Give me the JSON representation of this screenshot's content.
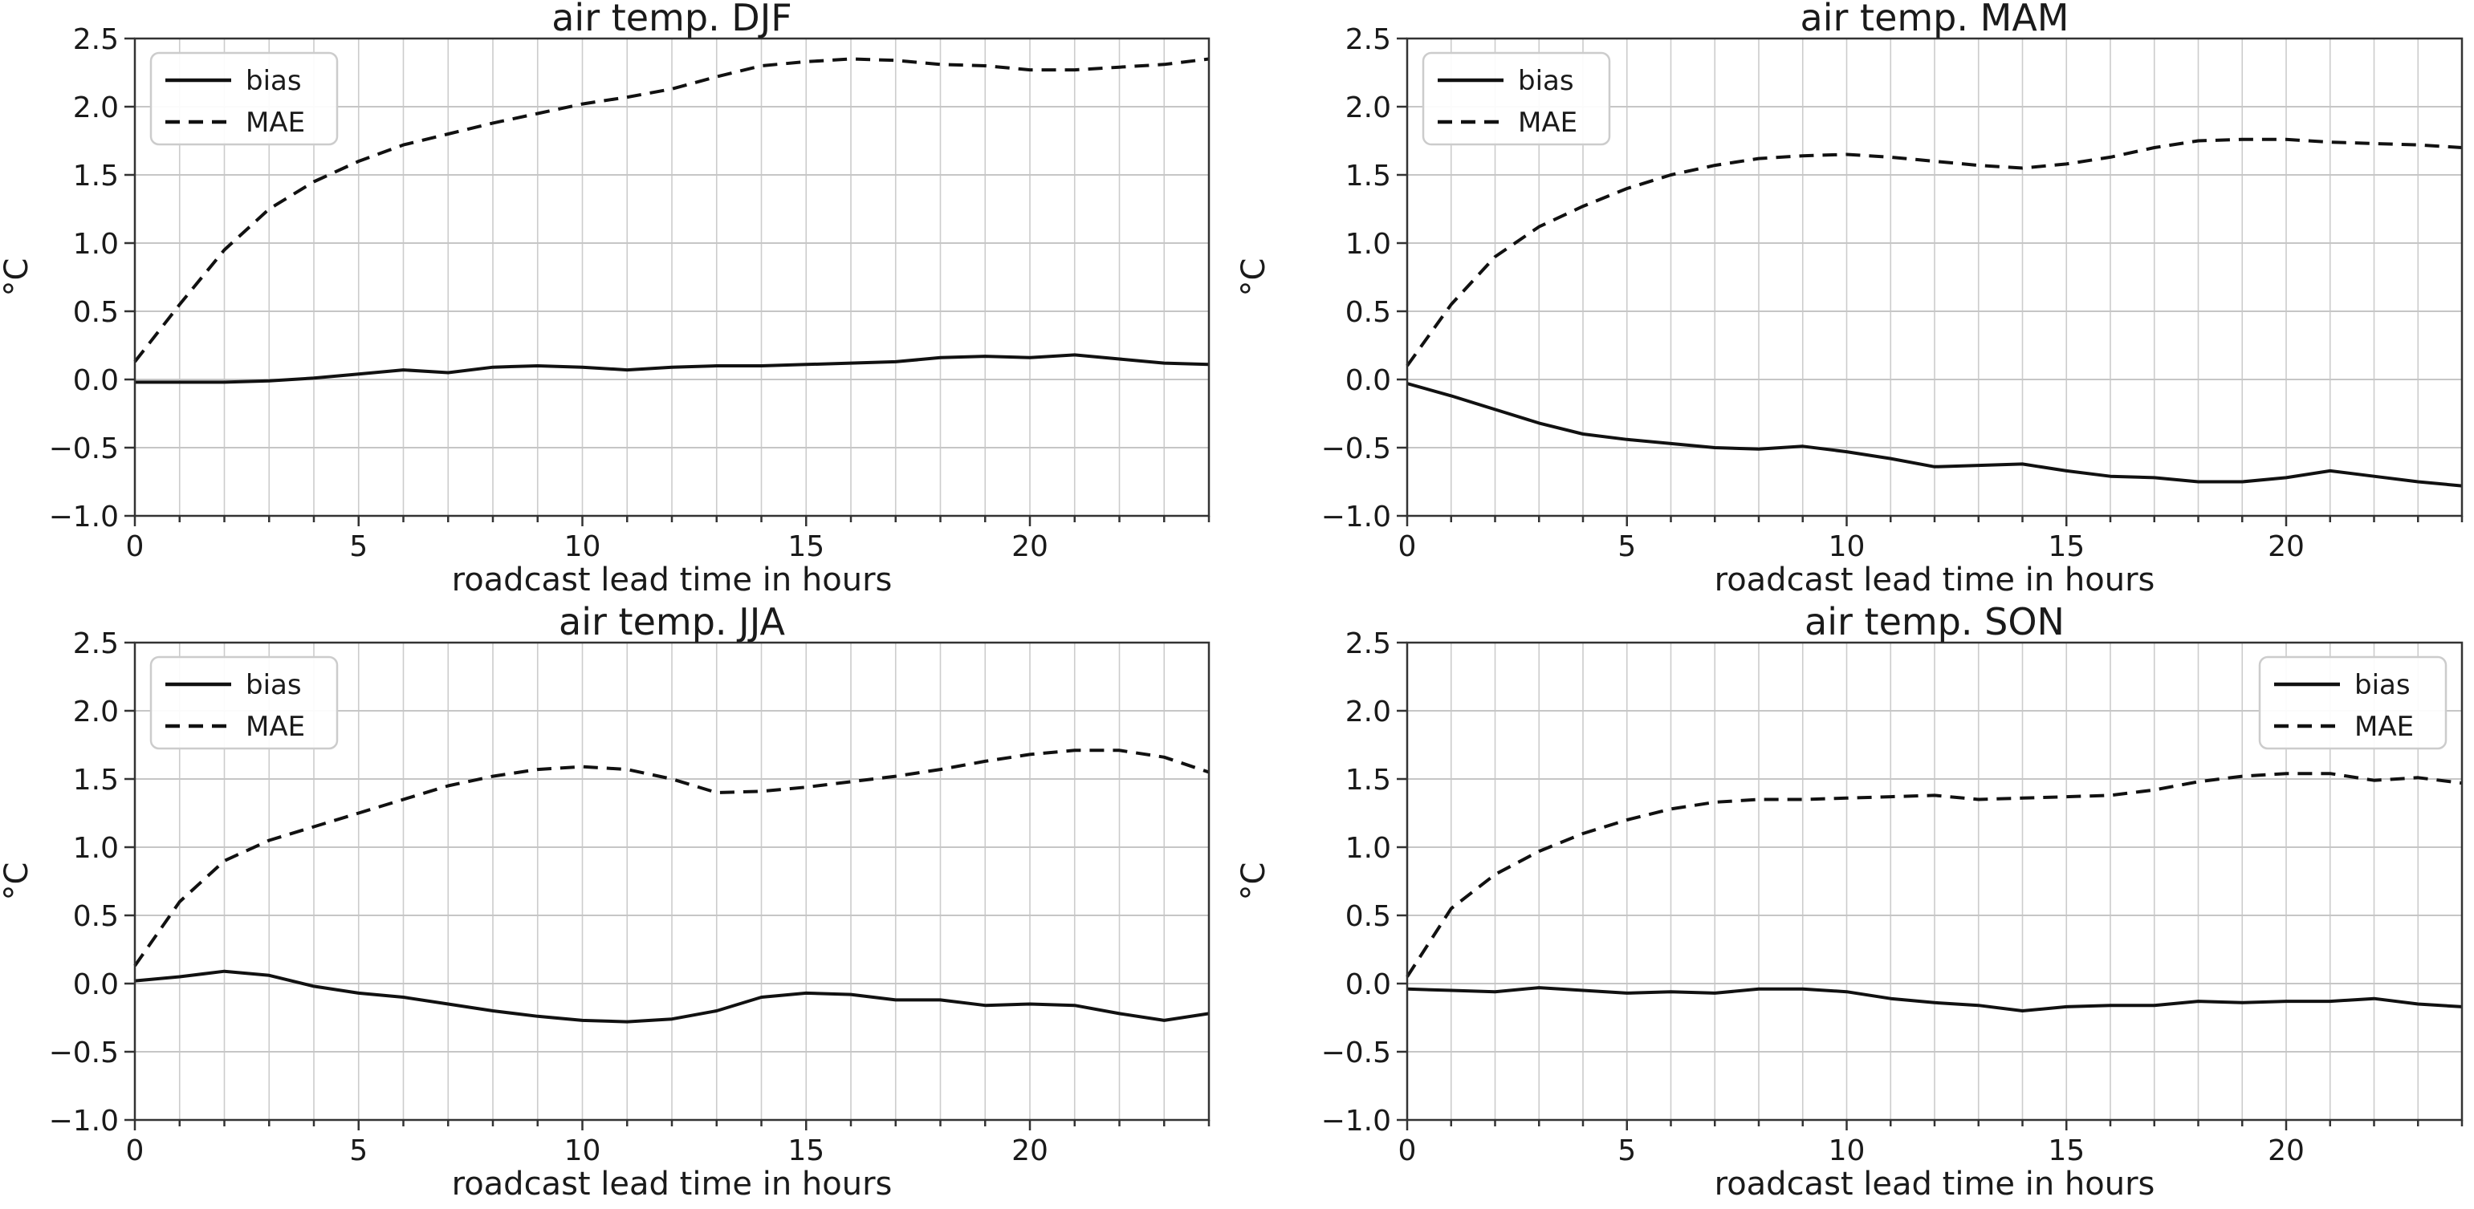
{
  "figure": {
    "background": "#ffffff",
    "line_color": "#111111",
    "grid_color_vertical": "#cccccc",
    "grid_color_horizontal": "#c6c6c6",
    "spine_color": "#333333",
    "text_color": "#1a1a1a",
    "legend_border_color": "#cccccc",
    "legend_labels": [
      "bias",
      "MAE"
    ]
  },
  "chart_data": [
    {
      "type": "line",
      "title": "air temp. DJF",
      "xlabel": "roadcast lead time in hours",
      "ylabel": "°C",
      "xlim": [
        0,
        24
      ],
      "ylim": [
        -1.0,
        2.5
      ],
      "grid": true,
      "legend_position": "top-left",
      "x_tick_values": [
        0,
        5,
        10,
        15,
        20
      ],
      "x_tick_labels": [
        "0",
        "5",
        "10",
        "15",
        "20"
      ],
      "x_minor_tick_every": 1,
      "y_tick_values": [
        2.5,
        2.0,
        1.5,
        1.0,
        0.5,
        0.0,
        -0.5,
        -1.0
      ],
      "y_tick_labels": [
        "2.5",
        "2.0",
        "1.5",
        "1.0",
        "0.5",
        "0.0",
        "−0.5",
        "−1.0"
      ],
      "x": [
        0,
        1,
        2,
        3,
        4,
        5,
        6,
        7,
        8,
        9,
        10,
        11,
        12,
        13,
        14,
        15,
        16,
        17,
        18,
        19,
        20,
        21,
        22,
        23,
        24
      ],
      "series": [
        {
          "name": "bias",
          "line_style": "solid",
          "values": [
            -0.02,
            -0.02,
            -0.02,
            -0.01,
            0.01,
            0.04,
            0.07,
            0.05,
            0.09,
            0.1,
            0.09,
            0.07,
            0.09,
            0.1,
            0.1,
            0.11,
            0.12,
            0.13,
            0.16,
            0.17,
            0.16,
            0.18,
            0.15,
            0.12,
            0.11
          ]
        },
        {
          "name": "MAE",
          "line_style": "dashed",
          "values": [
            0.13,
            0.55,
            0.95,
            1.25,
            1.45,
            1.6,
            1.72,
            1.8,
            1.88,
            1.95,
            2.02,
            2.07,
            2.13,
            2.22,
            2.3,
            2.33,
            2.35,
            2.34,
            2.31,
            2.3,
            2.27,
            2.27,
            2.29,
            2.31,
            2.35
          ]
        }
      ]
    },
    {
      "type": "line",
      "title": "air temp. MAM",
      "xlabel": "roadcast lead time in hours",
      "ylabel": "°C",
      "xlim": [
        0,
        24
      ],
      "ylim": [
        -1.0,
        2.5
      ],
      "grid": true,
      "legend_position": "top-left",
      "x_tick_values": [
        0,
        5,
        10,
        15,
        20
      ],
      "x_tick_labels": [
        "0",
        "5",
        "10",
        "15",
        "20"
      ],
      "x_minor_tick_every": 1,
      "y_tick_values": [
        2.5,
        2.0,
        1.5,
        1.0,
        0.5,
        0.0,
        -0.5,
        -1.0
      ],
      "y_tick_labels": [
        "2.5",
        "2.0",
        "1.5",
        "1.0",
        "0.5",
        "0.0",
        "−0.5",
        "−1.0"
      ],
      "x": [
        0,
        1,
        2,
        3,
        4,
        5,
        6,
        7,
        8,
        9,
        10,
        11,
        12,
        13,
        14,
        15,
        16,
        17,
        18,
        19,
        20,
        21,
        22,
        23,
        24
      ],
      "series": [
        {
          "name": "bias",
          "line_style": "solid",
          "values": [
            -0.03,
            -0.12,
            -0.22,
            -0.32,
            -0.4,
            -0.44,
            -0.47,
            -0.5,
            -0.51,
            -0.49,
            -0.53,
            -0.58,
            -0.64,
            -0.63,
            -0.62,
            -0.67,
            -0.71,
            -0.72,
            -0.75,
            -0.75,
            -0.72,
            -0.67,
            -0.71,
            -0.75,
            -0.78
          ]
        },
        {
          "name": "MAE",
          "line_style": "dashed",
          "values": [
            0.1,
            0.55,
            0.9,
            1.12,
            1.27,
            1.4,
            1.5,
            1.57,
            1.62,
            1.64,
            1.65,
            1.63,
            1.6,
            1.57,
            1.55,
            1.58,
            1.63,
            1.7,
            1.75,
            1.76,
            1.76,
            1.74,
            1.73,
            1.72,
            1.7
          ]
        }
      ]
    },
    {
      "type": "line",
      "title": "air temp. JJA",
      "xlabel": "roadcast lead time in hours",
      "ylabel": "°C",
      "xlim": [
        0,
        24
      ],
      "ylim": [
        -1.0,
        2.5
      ],
      "grid": true,
      "legend_position": "top-left",
      "x_tick_values": [
        0,
        5,
        10,
        15,
        20
      ],
      "x_tick_labels": [
        "0",
        "5",
        "10",
        "15",
        "20"
      ],
      "x_minor_tick_every": 1,
      "y_tick_values": [
        2.5,
        2.0,
        1.5,
        1.0,
        0.5,
        0.0,
        -0.5,
        -1.0
      ],
      "y_tick_labels": [
        "2.5",
        "2.0",
        "1.5",
        "1.0",
        "0.5",
        "0.0",
        "−0.5",
        "−1.0"
      ],
      "x": [
        0,
        1,
        2,
        3,
        4,
        5,
        6,
        7,
        8,
        9,
        10,
        11,
        12,
        13,
        14,
        15,
        16,
        17,
        18,
        19,
        20,
        21,
        22,
        23,
        24
      ],
      "series": [
        {
          "name": "bias",
          "line_style": "solid",
          "values": [
            0.02,
            0.05,
            0.09,
            0.06,
            -0.02,
            -0.07,
            -0.1,
            -0.15,
            -0.2,
            -0.24,
            -0.27,
            -0.28,
            -0.26,
            -0.2,
            -0.1,
            -0.07,
            -0.08,
            -0.12,
            -0.12,
            -0.16,
            -0.15,
            -0.16,
            -0.22,
            -0.27,
            -0.22
          ]
        },
        {
          "name": "MAE",
          "line_style": "dashed",
          "values": [
            0.13,
            0.6,
            0.9,
            1.05,
            1.15,
            1.25,
            1.35,
            1.45,
            1.52,
            1.57,
            1.59,
            1.57,
            1.5,
            1.4,
            1.41,
            1.44,
            1.48,
            1.52,
            1.57,
            1.63,
            1.68,
            1.71,
            1.71,
            1.66,
            1.55
          ]
        }
      ]
    },
    {
      "type": "line",
      "title": "air temp. SON",
      "xlabel": "roadcast lead time in hours",
      "ylabel": "°C",
      "xlim": [
        0,
        24
      ],
      "ylim": [
        -1.0,
        2.5
      ],
      "grid": true,
      "legend_position": "top-right",
      "x_tick_values": [
        0,
        5,
        10,
        15,
        20
      ],
      "x_tick_labels": [
        "0",
        "5",
        "10",
        "15",
        "20"
      ],
      "x_minor_tick_every": 1,
      "y_tick_values": [
        2.5,
        2.0,
        1.5,
        1.0,
        0.5,
        0.0,
        -0.5,
        -1.0
      ],
      "y_tick_labels": [
        "2.5",
        "2.0",
        "1.5",
        "1.0",
        "0.5",
        "0.0",
        "−0.5",
        "−1.0"
      ],
      "x": [
        0,
        1,
        2,
        3,
        4,
        5,
        6,
        7,
        8,
        9,
        10,
        11,
        12,
        13,
        14,
        15,
        16,
        17,
        18,
        19,
        20,
        21,
        22,
        23,
        24
      ],
      "series": [
        {
          "name": "bias",
          "line_style": "solid",
          "values": [
            -0.04,
            -0.05,
            -0.06,
            -0.03,
            -0.05,
            -0.07,
            -0.06,
            -0.07,
            -0.04,
            -0.04,
            -0.06,
            -0.11,
            -0.14,
            -0.16,
            -0.2,
            -0.17,
            -0.16,
            -0.16,
            -0.13,
            -0.14,
            -0.13,
            -0.13,
            -0.11,
            -0.15,
            -0.17
          ]
        },
        {
          "name": "MAE",
          "line_style": "dashed",
          "values": [
            0.05,
            0.55,
            0.8,
            0.97,
            1.1,
            1.2,
            1.28,
            1.33,
            1.35,
            1.35,
            1.36,
            1.37,
            1.38,
            1.35,
            1.36,
            1.37,
            1.38,
            1.42,
            1.48,
            1.52,
            1.54,
            1.54,
            1.49,
            1.51,
            1.47
          ]
        }
      ]
    }
  ]
}
